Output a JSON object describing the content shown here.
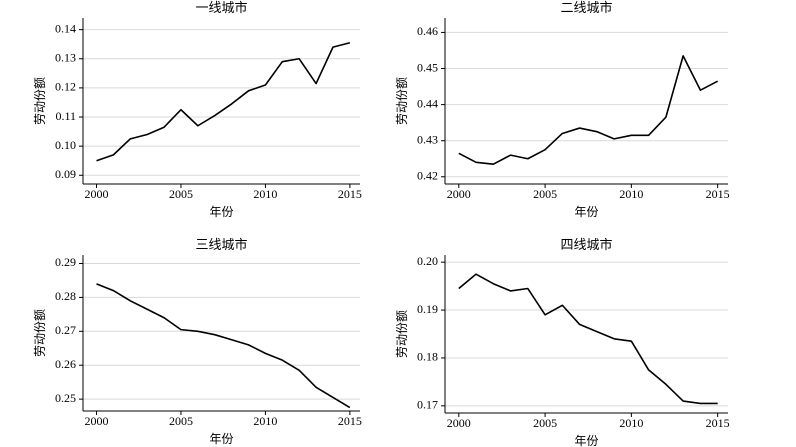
{
  "chart_data": [
    {
      "type": "line",
      "title": "一线城市",
      "x_label": "年份",
      "y_label": "劳动份额",
      "x": [
        2000,
        2001,
        2002,
        2003,
        2004,
        2005,
        2006,
        2007,
        2008,
        2009,
        2010,
        2011,
        2012,
        2013,
        2014,
        2015
      ],
      "series": [
        {
          "color": "#000000",
          "values": [
            0.095,
            0.097,
            0.1025,
            0.104,
            0.1065,
            0.1125,
            0.107,
            0.1105,
            0.1145,
            0.119,
            0.121,
            0.129,
            0.13,
            0.1215,
            0.134,
            0.1355
          ]
        }
      ],
      "xlim": [
        1999.2,
        2015.6
      ],
      "xticks": [
        2000,
        2005,
        2010,
        2015
      ],
      "ylim": [
        0.087,
        0.144
      ],
      "yticks": [
        0.09,
        {
          "value": 0.1,
          "label": "0.10"
        },
        0.11,
        0.12,
        0.13,
        0.14
      ],
      "grid": true
    },
    {
      "type": "line",
      "title": "二线城市",
      "x_label": "年份",
      "y_label": "劳动份额",
      "x": [
        2000,
        2001,
        2002,
        2003,
        2004,
        2005,
        2006,
        2007,
        2008,
        2009,
        2010,
        2011,
        2012,
        2013,
        2014,
        2015
      ],
      "series": [
        {
          "color": "#000000",
          "values": [
            0.4265,
            0.424,
            0.4235,
            0.426,
            0.425,
            0.4275,
            0.432,
            0.4335,
            0.4325,
            0.4305,
            0.4315,
            0.4315,
            0.4365,
            0.4535,
            0.444,
            0.4465
          ]
        }
      ],
      "xlim": [
        1999.2,
        2015.6
      ],
      "xticks": [
        2000,
        2005,
        2010,
        2015
      ],
      "ylim": [
        0.418,
        0.464
      ],
      "yticks": [
        0.42,
        0.43,
        0.44,
        0.45,
        0.46
      ],
      "grid": true
    },
    {
      "type": "line",
      "title": "三线城市",
      "x_label": "年份",
      "y_label": "劳动份额",
      "x": [
        2000,
        2001,
        2002,
        2003,
        2004,
        2005,
        2006,
        2007,
        2008,
        2009,
        2010,
        2011,
        2012,
        2013,
        2014,
        2015
      ],
      "series": [
        {
          "color": "#000000",
          "values": [
            0.284,
            0.282,
            0.279,
            0.2765,
            0.274,
            0.2705,
            0.27,
            0.269,
            0.2675,
            0.266,
            0.2635,
            0.2615,
            0.2585,
            0.2535,
            0.2505,
            0.2475
          ]
        }
      ],
      "xlim": [
        1999.2,
        2015.6
      ],
      "xticks": [
        2000,
        2005,
        2010,
        2015
      ],
      "ylim": [
        0.2465,
        0.2925
      ],
      "yticks": [
        0.25,
        0.26,
        0.27,
        0.28,
        0.29
      ],
      "grid": true
    },
    {
      "type": "line",
      "title": "四线城市",
      "x_label": "年份",
      "y_label": "劳动份额",
      "x": [
        2000,
        2001,
        2002,
        2003,
        2004,
        2005,
        2006,
        2007,
        2008,
        2009,
        2010,
        2011,
        2012,
        2013,
        2014,
        2015
      ],
      "series": [
        {
          "color": "#000000",
          "values": [
            0.1945,
            0.1975,
            0.1955,
            0.194,
            0.1945,
            0.189,
            0.191,
            0.187,
            0.1855,
            0.184,
            0.1835,
            0.1775,
            0.1745,
            0.171,
            0.1705,
            0.1705
          ]
        }
      ],
      "xlim": [
        1999.2,
        2015.6
      ],
      "xticks": [
        2000,
        2005,
        2010,
        2015
      ],
      "ylim": [
        0.1685,
        0.2015
      ],
      "yticks": [
        0.17,
        0.18,
        0.19,
        {
          "value": 0.2,
          "label": "0.20"
        }
      ],
      "grid": true
    }
  ]
}
